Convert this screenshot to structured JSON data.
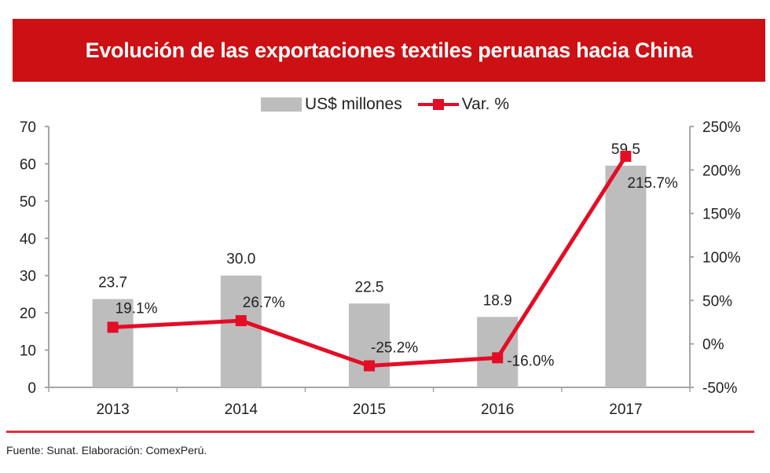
{
  "header": {
    "title": "Evolución de las exportaciones textiles peruanas hacia China"
  },
  "legend": {
    "bar_label": "US$ millones",
    "line_label": "Var. %"
  },
  "footer": {
    "source": "Fuente: Sunat. Elaboración: ComexPerú."
  },
  "colors": {
    "banner": "#cc1014",
    "bar": "#bdbdbd",
    "line": "#e30d26",
    "axis": "#a6a6a6",
    "footer_rule": "#e0323e"
  },
  "chart_data": {
    "type": "bar+line",
    "title": "Evolución de las exportaciones textiles peruanas hacia China",
    "categories": [
      "2013",
      "2014",
      "2015",
      "2016",
      "2017"
    ],
    "series": [
      {
        "name": "US$ millones",
        "type": "bar",
        "axis": "left",
        "values": [
          23.7,
          30.0,
          22.5,
          18.9,
          59.5
        ],
        "labels": [
          "23.7",
          "30.0",
          "22.5",
          "18.9",
          "59.5"
        ]
      },
      {
        "name": "Var. %",
        "type": "line",
        "axis": "right",
        "values": [
          19.1,
          26.7,
          -25.2,
          -16.0,
          215.7
        ],
        "labels": [
          "19.1%",
          "26.7%",
          "-25.2%",
          "-16.0%",
          "215.7%"
        ]
      }
    ],
    "y_left": {
      "ylim": [
        0,
        70
      ],
      "ticks": [
        0,
        10,
        20,
        30,
        40,
        50,
        60,
        70
      ],
      "tick_labels": [
        "0",
        "10",
        "20",
        "30",
        "40",
        "50",
        "60",
        "70"
      ]
    },
    "y_right": {
      "ylim": [
        -50,
        250
      ],
      "ticks": [
        -50,
        0,
        50,
        100,
        150,
        200,
        250
      ],
      "tick_labels": [
        "-50%",
        "0%",
        "50%",
        "100%",
        "150%",
        "200%",
        "250%"
      ]
    },
    "xlabel": "",
    "ylabel": "",
    "grid": false,
    "legend_position": "top-center"
  }
}
